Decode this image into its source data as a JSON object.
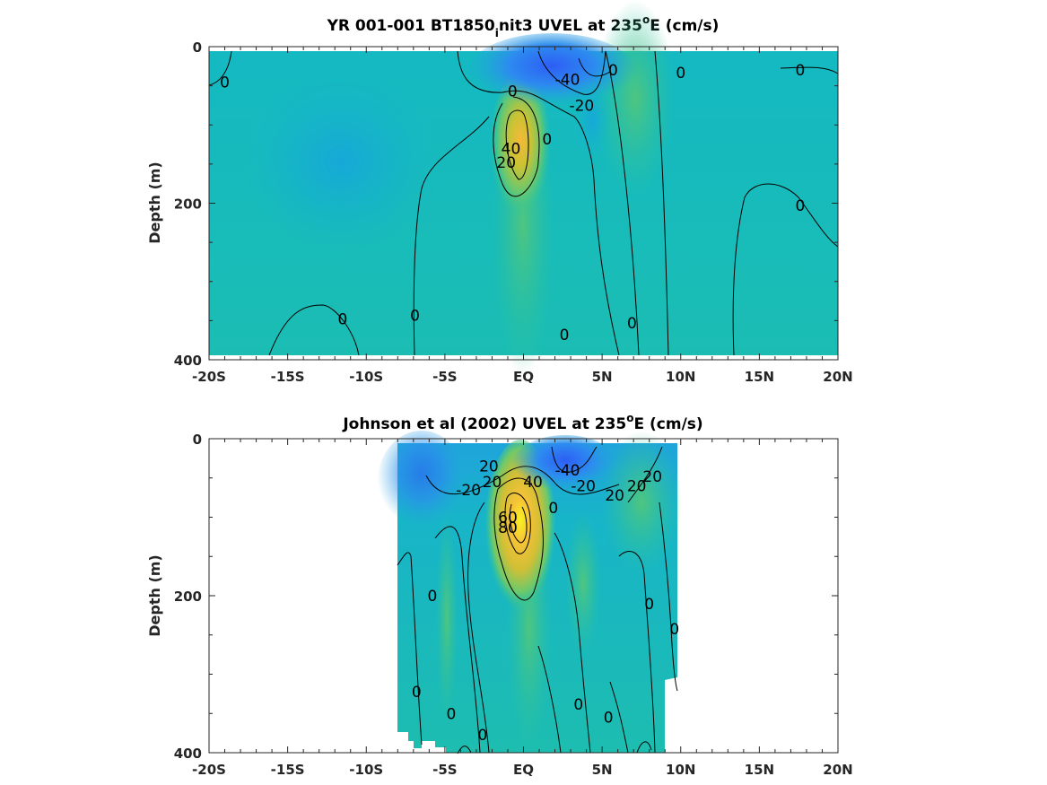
{
  "chart_data": [
    {
      "type": "heatmap",
      "title": "YR 001-001 BT1850",
      "title_sub": "i",
      "title_rest": "nit3 UVEL at 235",
      "title_sup": "o",
      "title_end": "E (cm/s)",
      "ylabel": "Depth (m)",
      "xlim": [
        -20,
        20
      ],
      "ylim": [
        0,
        400
      ],
      "y_reversed": true,
      "x_ticks": [
        -20,
        -15,
        -10,
        -5,
        0,
        5,
        10,
        15,
        20
      ],
      "x_tick_labels": [
        "-20S",
        "-15S",
        "-10S",
        "-5S",
        "EQ",
        "5N",
        "10N",
        "15N",
        "20N"
      ],
      "y_ticks": [
        0,
        200,
        400
      ],
      "y_tick_labels": [
        "0",
        "200",
        "400"
      ],
      "data_extent": {
        "lat": [
          -20,
          20
        ],
        "depth": [
          5,
          395
        ]
      },
      "features": [
        {
          "kind": "eastward-max",
          "lat": -0.2,
          "depth": 120,
          "value": 45
        },
        {
          "kind": "westward-max",
          "lat": 2.5,
          "depth": 25,
          "value": -45
        },
        {
          "kind": "westward-weak",
          "lat": -11,
          "depth": 150,
          "value": -15
        },
        {
          "kind": "eastward-weak",
          "lat": 7.5,
          "depth": 50,
          "value": 15
        }
      ],
      "contour_labels": [
        {
          "text": "0",
          "lat": -19,
          "depth": 45
        },
        {
          "text": "0",
          "lat": -0.7,
          "depth": 57
        },
        {
          "text": "-40",
          "lat": 2.8,
          "depth": 42
        },
        {
          "text": "-20",
          "lat": 3.7,
          "depth": 75
        },
        {
          "text": "0",
          "lat": 5.7,
          "depth": 30
        },
        {
          "text": "0",
          "lat": 10,
          "depth": 33
        },
        {
          "text": "0",
          "lat": 17.6,
          "depth": 30
        },
        {
          "text": "0",
          "lat": 1.5,
          "depth": 118
        },
        {
          "text": "40",
          "lat": -0.8,
          "depth": 130
        },
        {
          "text": "20",
          "lat": -1.1,
          "depth": 148
        },
        {
          "text": "0",
          "lat": 17.6,
          "depth": 203
        },
        {
          "text": "0",
          "lat": -11.5,
          "depth": 348
        },
        {
          "text": "0",
          "lat": -6.9,
          "depth": 343
        },
        {
          "text": "0",
          "lat": 2.6,
          "depth": 368
        },
        {
          "text": "0",
          "lat": 6.9,
          "depth": 353
        }
      ]
    },
    {
      "type": "heatmap",
      "title": "Johnson et al (2002) UVEL at 235",
      "title_sup": "o",
      "title_end": "E (cm/s)",
      "ylabel": "Depth (m)",
      "xlim": [
        -20,
        20
      ],
      "ylim": [
        0,
        400
      ],
      "y_reversed": true,
      "x_ticks": [
        -20,
        -15,
        -10,
        -5,
        0,
        5,
        10,
        15,
        20
      ],
      "x_tick_labels": [
        "-20S",
        "-15S",
        "-10S",
        "-5S",
        "EQ",
        "5N",
        "10N",
        "15N",
        "20N"
      ],
      "y_ticks": [
        0,
        200,
        400
      ],
      "y_tick_labels": [
        "0",
        "200",
        "400"
      ],
      "data_extent": {
        "lat": [
          -8,
          10
        ],
        "depth": [
          5,
          400
        ]
      },
      "features": [
        {
          "kind": "eastward-max",
          "lat": -0.2,
          "depth": 90,
          "value": 80
        },
        {
          "kind": "westward-max",
          "lat": 2.2,
          "depth": 20,
          "value": -50
        },
        {
          "kind": "westward-weak",
          "lat": -6,
          "depth": 40,
          "value": -25
        },
        {
          "kind": "eastward-weak",
          "lat": 8,
          "depth": 40,
          "value": 25
        }
      ],
      "contour_labels": [
        {
          "text": "-20",
          "lat": -3.5,
          "depth": 65
        },
        {
          "text": "20",
          "lat": -2.2,
          "depth": 35
        },
        {
          "text": "20",
          "lat": -2.0,
          "depth": 55
        },
        {
          "text": "40",
          "lat": 0.6,
          "depth": 55
        },
        {
          "text": "-40",
          "lat": 2.8,
          "depth": 40
        },
        {
          "text": "-20",
          "lat": 3.8,
          "depth": 60
        },
        {
          "text": "0",
          "lat": 1.9,
          "depth": 88
        },
        {
          "text": "20",
          "lat": 5.8,
          "depth": 72
        },
        {
          "text": "20",
          "lat": 7.2,
          "depth": 60
        },
        {
          "text": "20",
          "lat": 8.2,
          "depth": 48
        },
        {
          "text": "60",
          "lat": -1.0,
          "depth": 100
        },
        {
          "text": "80",
          "lat": -1.0,
          "depth": 113
        },
        {
          "text": "0",
          "lat": -5.8,
          "depth": 200
        },
        {
          "text": "0",
          "lat": 8.0,
          "depth": 210
        },
        {
          "text": "0",
          "lat": 9.6,
          "depth": 242
        },
        {
          "text": "0",
          "lat": -6.8,
          "depth": 322
        },
        {
          "text": "0",
          "lat": 3.5,
          "depth": 338
        },
        {
          "text": "0",
          "lat": -4.6,
          "depth": 350
        },
        {
          "text": "0",
          "lat": 5.4,
          "depth": 355
        },
        {
          "text": "0",
          "lat": -2.6,
          "depth": 377
        }
      ]
    }
  ]
}
